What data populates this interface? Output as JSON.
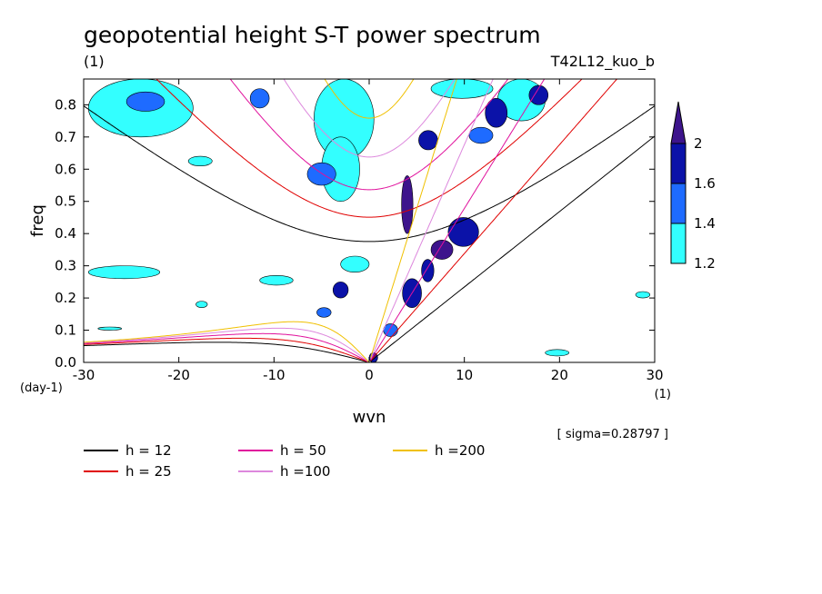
{
  "chart_data": {
    "type": "heatmap",
    "title": "geopotential height S-T power spectrum",
    "subtitle": "(1)",
    "run_label": "T42L12_kuo_b",
    "xlabel": "wvn",
    "ylabel": "freq",
    "x_unit": "(1)",
    "y_unit": "(day-1)",
    "xlim": [
      -30,
      30
    ],
    "ylim": [
      0,
      0.88
    ],
    "x_ticks": [
      "-30",
      "-20",
      "-10",
      "0",
      "10",
      "20",
      "30"
    ],
    "y_ticks": [
      "0.0",
      "0.1",
      "0.2",
      "0.3",
      "0.4",
      "0.5",
      "0.6",
      "0.7",
      "0.8"
    ],
    "sigma_note": "[ sigma=0.28797 ]",
    "colorbar": {
      "levels": [
        "1.2",
        "1.4",
        "1.6",
        "2"
      ],
      "colors": [
        "#33ffff",
        "#1e6bff",
        "#0b12a8",
        "#3d148c"
      ]
    },
    "dispersion_curves": [
      {
        "label": "h = 12",
        "h": 12,
        "color": "#000000"
      },
      {
        "label": "h = 25",
        "h": 25,
        "color": "#e00000"
      },
      {
        "label": "h = 50",
        "h": 50,
        "color": "#e0109c"
      },
      {
        "label": "h =100",
        "h": 100,
        "color": "#dd88dd"
      },
      {
        "label": "h =200",
        "h": 200,
        "color": "#f0c000"
      }
    ],
    "power_regions": [
      {
        "level": 2,
        "x": [
          0,
          0.9
        ],
        "y": [
          0.0,
          0.03
        ]
      },
      {
        "level": 3,
        "x": [
          3.4,
          4.6
        ],
        "y": [
          0.4,
          0.58
        ]
      },
      {
        "level": 3,
        "x": [
          6.5,
          8.8
        ],
        "y": [
          0.32,
          0.38
        ]
      },
      {
        "level": 2,
        "x": [
          5.5,
          6.8
        ],
        "y": [
          0.25,
          0.32
        ]
      },
      {
        "level": 2,
        "x": [
          3.5,
          5.5
        ],
        "y": [
          0.17,
          0.26
        ]
      },
      {
        "level": 2,
        "x": [
          5.2,
          7.2
        ],
        "y": [
          0.66,
          0.72
        ]
      },
      {
        "level": 2,
        "x": [
          8.3,
          11.5
        ],
        "y": [
          0.36,
          0.45
        ]
      },
      {
        "level": 2,
        "x": [
          12.2,
          14.5
        ],
        "y": [
          0.73,
          0.82
        ]
      },
      {
        "level": 2,
        "x": [
          16.8,
          18.8
        ],
        "y": [
          0.8,
          0.86
        ]
      },
      {
        "level": 2,
        "x": [
          -3.8,
          -2.2
        ],
        "y": [
          0.2,
          0.25
        ]
      },
      {
        "level": 1,
        "x": [
          -25.5,
          -21.5
        ],
        "y": [
          0.78,
          0.84
        ]
      },
      {
        "level": 1,
        "x": [
          -12.5,
          -10.5
        ],
        "y": [
          0.79,
          0.85
        ]
      },
      {
        "level": 1,
        "x": [
          -6.5,
          -3.5
        ],
        "y": [
          0.55,
          0.62
        ]
      },
      {
        "level": 1,
        "x": [
          -5.5,
          -4
        ],
        "y": [
          0.14,
          0.17
        ]
      },
      {
        "level": 1,
        "x": [
          10.5,
          13
        ],
        "y": [
          0.68,
          0.73
        ]
      },
      {
        "level": 1,
        "x": [
          1.5,
          3
        ],
        "y": [
          0.08,
          0.12
        ]
      },
      {
        "level": 0,
        "x": [
          -29.5,
          -18.5
        ],
        "y": [
          0.7,
          0.88
        ]
      },
      {
        "level": 0,
        "x": [
          -29.5,
          -22
        ],
        "y": [
          0.26,
          0.3
        ]
      },
      {
        "level": 0,
        "x": [
          -19,
          -16.5
        ],
        "y": [
          0.61,
          0.64
        ]
      },
      {
        "level": 0,
        "x": [
          -28.5,
          -26
        ],
        "y": [
          0.1,
          0.11
        ]
      },
      {
        "level": 0,
        "x": [
          -18.2,
          -17
        ],
        "y": [
          0.17,
          0.19
        ]
      },
      {
        "level": 0,
        "x": [
          -5.8,
          0.5
        ],
        "y": [
          0.63,
          0.88
        ]
      },
      {
        "level": 0,
        "x": [
          -5,
          -1
        ],
        "y": [
          0.5,
          0.7
        ]
      },
      {
        "level": 0,
        "x": [
          -11.5,
          -8
        ],
        "y": [
          0.24,
          0.27
        ]
      },
      {
        "level": 0,
        "x": [
          -3,
          0
        ],
        "y": [
          0.28,
          0.33
        ]
      },
      {
        "level": 0,
        "x": [
          6.5,
          13
        ],
        "y": [
          0.82,
          0.88
        ]
      },
      {
        "level": 0,
        "x": [
          13.5,
          18.5
        ],
        "y": [
          0.75,
          0.88
        ]
      },
      {
        "level": 0,
        "x": [
          18.5,
          21
        ],
        "y": [
          0.02,
          0.04
        ]
      },
      {
        "level": 0,
        "x": [
          28,
          29.5
        ],
        "y": [
          0.2,
          0.22
        ]
      }
    ]
  }
}
